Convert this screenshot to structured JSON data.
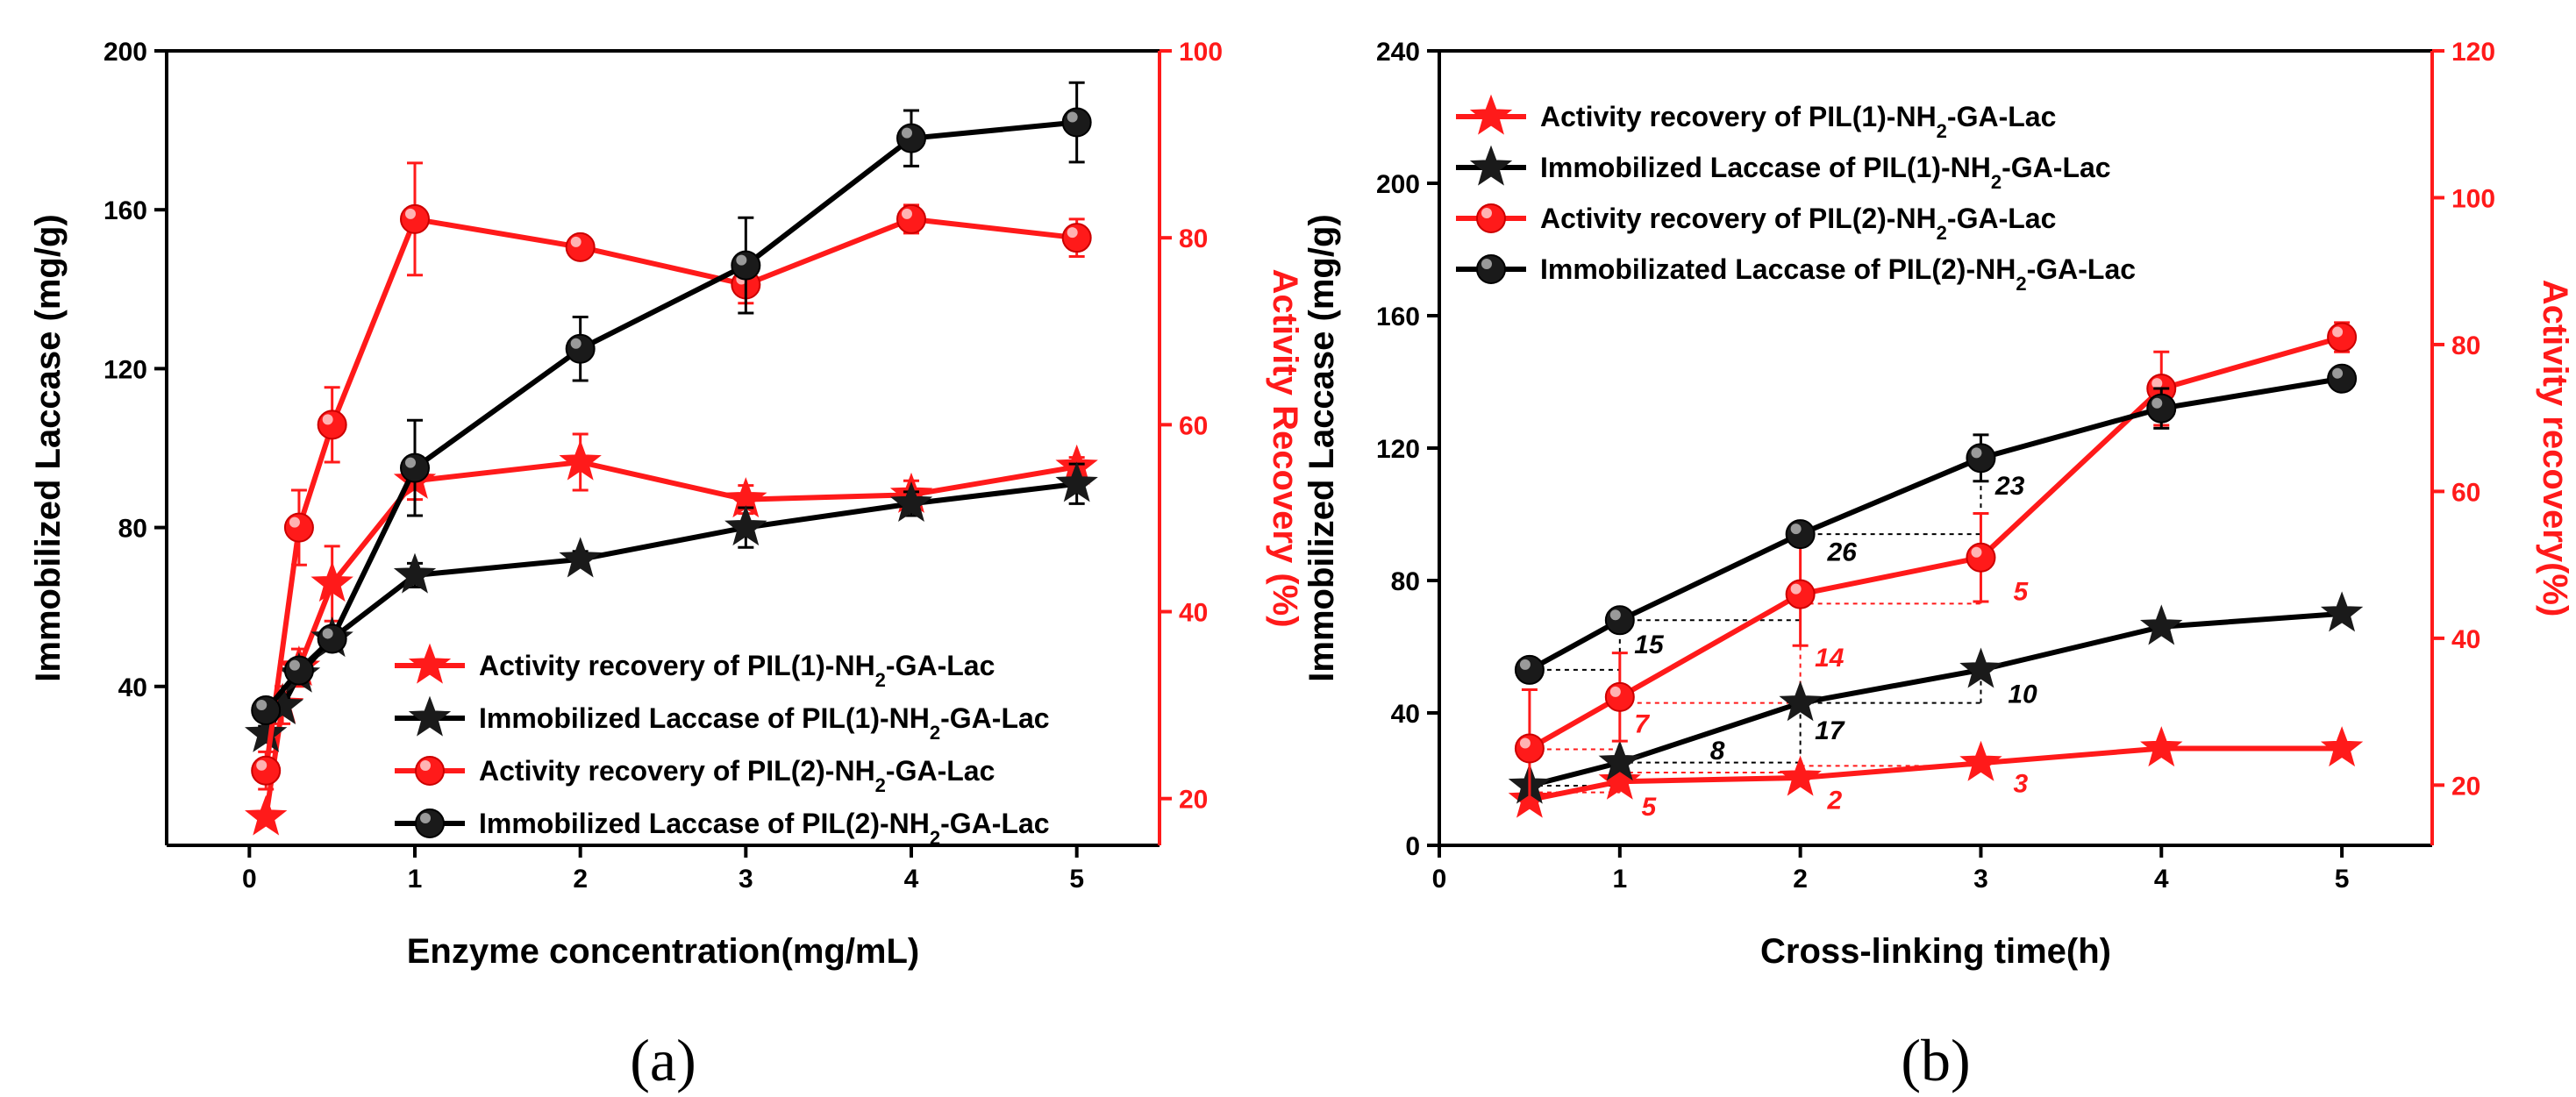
{
  "colors": {
    "black": "#000000",
    "red": "#ff1a1a",
    "dark_marker": "#1a1a1a"
  },
  "chart_data": [
    {
      "id": "a",
      "type": "line",
      "panel_label": "(a)",
      "xlabel": "Enzyme concentration(mg/mL)",
      "ylabel_left": "Immobilized Laccase (mg/g)",
      "ylabel_right": "Activity Recovery (%)",
      "xlim": [
        -0.5,
        5.5
      ],
      "ylim_left": [
        0,
        200
      ],
      "ylim_right": [
        15,
        100
      ],
      "xticks": [
        "0",
        "1",
        "2",
        "3",
        "4",
        "5"
      ],
      "yticks_left": [
        "40",
        "80",
        "120",
        "160",
        "200"
      ],
      "yticks_right": [
        "20",
        "40",
        "60",
        "80",
        "100"
      ],
      "legend": [
        "Activity recovery of PIL(1)-NH₂-GA-Lac",
        "Immobilized Laccase of PIL(1)-NH₂-GA-Lac",
        "Activity recovery of PIL(2)-NH₂-GA-Lac",
        "Immobilized Laccase of PIL(2)-NH₂-GA-Lac"
      ],
      "series": [
        {
          "name": "Activity recovery of PIL(1)-NH₂-GA-Lac",
          "axis": "right",
          "marker": "star",
          "color": "#ff1a1a",
          "x": [
            0.1,
            0.2,
            0.3,
            0.5,
            1,
            2,
            3,
            4,
            5
          ],
          "y": [
            18,
            30,
            34,
            43,
            54,
            56,
            52,
            52.5,
            55.5
          ],
          "err": [
            0,
            2,
            2,
            4,
            2,
            3,
            1.5,
            1.5,
            1
          ]
        },
        {
          "name": "Immobilized Laccase of PIL(1)-NH₂-GA-Lac",
          "axis": "left",
          "marker": "star",
          "color": "#1a1a1a",
          "x": [
            0.1,
            0.2,
            0.3,
            0.5,
            1,
            2,
            3,
            4,
            5
          ],
          "y": [
            28,
            35,
            43,
            52,
            68,
            72,
            80,
            86,
            91
          ],
          "err": [
            2,
            2,
            2,
            2,
            3,
            2,
            5,
            3,
            5
          ]
        },
        {
          "name": "Activity recovery of PIL(2)-NH₂-GA-Lac",
          "axis": "right",
          "marker": "circle",
          "color": "#ff1a1a",
          "x": [
            0.1,
            0.3,
            0.5,
            1,
            2,
            3,
            4,
            5
          ],
          "y": [
            23,
            49,
            60,
            82,
            79,
            75,
            82,
            80
          ],
          "err": [
            2,
            4,
            4,
            6,
            1,
            2,
            1.5,
            2
          ]
        },
        {
          "name": "Immobilized Laccase of PIL(2)-NH₂-GA-Lac",
          "axis": "left",
          "marker": "circle",
          "color": "#1a1a1a",
          "x": [
            0.1,
            0.3,
            0.5,
            1,
            2,
            3,
            4,
            5
          ],
          "y": [
            34,
            44,
            52,
            95,
            125,
            146,
            178,
            182
          ],
          "err": [
            2,
            2,
            2,
            12,
            8,
            12,
            7,
            10
          ]
        }
      ],
      "annotations": []
    },
    {
      "id": "b",
      "type": "line",
      "panel_label": "(b)",
      "xlabel": "Cross-linking time(h)",
      "ylabel_left": "Immobilized Laccase (mg/g)",
      "ylabel_right": "Activity recovery(%)",
      "xlim": [
        0,
        5.5
      ],
      "ylim_left": [
        0,
        240
      ],
      "ylim_right": [
        11.8,
        120
      ],
      "xticks": [
        "0",
        "1",
        "2",
        "3",
        "4",
        "5"
      ],
      "yticks_left": [
        "0",
        "40",
        "80",
        "120",
        "160",
        "200",
        "240"
      ],
      "yticks_right": [
        "20",
        "40",
        "60",
        "80",
        "100",
        "120"
      ],
      "legend": [
        "Activity recovery of PIL(1)-NH₂-GA-Lac",
        "Immobilized Laccase of PIL(1)-NH₂-GA-Lac",
        "Activity recovery of PIL(2)-NH₂-GA-Lac",
        "Immobilizated Laccase of PIL(2)-NH₂-GA-Lac"
      ],
      "series": [
        {
          "name": "Activity recovery of PIL(1)-NH₂-GA-Lac",
          "axis": "right",
          "marker": "star",
          "color": "#ff1a1a",
          "x": [
            0.5,
            1,
            2,
            3,
            4,
            5
          ],
          "y": [
            18,
            20.5,
            21,
            23,
            25,
            25
          ],
          "err": [
            0,
            0,
            0,
            0,
            0,
            0
          ]
        },
        {
          "name": "Immobilized Laccase of PIL(1)-NH₂-GA-Lac",
          "axis": "left",
          "marker": "star",
          "color": "#1a1a1a",
          "x": [
            0.5,
            1,
            2,
            3,
            4,
            5
          ],
          "y": [
            18,
            25,
            43,
            53,
            66,
            70
          ],
          "err": [
            0,
            0,
            0,
            0,
            0,
            0
          ]
        },
        {
          "name": "Activity recovery of PIL(2)-NH₂-GA-Lac",
          "axis": "right",
          "marker": "circle",
          "color": "#ff1a1a",
          "x": [
            0.5,
            1,
            2,
            3,
            4,
            5
          ],
          "y": [
            25,
            32,
            46,
            51,
            74,
            81
          ],
          "err": [
            8,
            6,
            7,
            6,
            5,
            2
          ]
        },
        {
          "name": "Immobilizated Laccase of PIL(2)-NH₂-GA-Lac",
          "axis": "left",
          "marker": "circle",
          "color": "#1a1a1a",
          "x": [
            0.5,
            1,
            2,
            3,
            4,
            5
          ],
          "y": [
            53,
            68,
            94,
            117,
            132,
            141
          ],
          "err": [
            0,
            0,
            0,
            7,
            6,
            0
          ]
        }
      ],
      "annotations": [
        {
          "text": "15",
          "color": "#000000",
          "x": 1.08,
          "y_left": 58
        },
        {
          "text": "26",
          "color": "#000000",
          "x": 2.15,
          "y_left": 86
        },
        {
          "text": "23",
          "color": "#000000",
          "x": 3.08,
          "y_left": 106
        },
        {
          "text": "8",
          "color": "#000000",
          "x": 1.5,
          "y_left": 26
        },
        {
          "text": "17",
          "color": "#000000",
          "x": 2.08,
          "y_left": 32
        },
        {
          "text": "10",
          "color": "#000000",
          "x": 3.15,
          "y_left": 43
        },
        {
          "text": "5",
          "color": "#ff1a1a",
          "x": 1.12,
          "y_left": 9
        },
        {
          "text": "2",
          "color": "#ff1a1a",
          "x": 2.15,
          "y_left": 11
        },
        {
          "text": "3",
          "color": "#ff1a1a",
          "x": 3.18,
          "y_left": 16
        },
        {
          "text": "7",
          "color": "#ff1a1a",
          "x": 1.08,
          "y_left": 34
        },
        {
          "text": "14",
          "color": "#ff1a1a",
          "x": 2.08,
          "y_left": 54
        },
        {
          "text": "5",
          "color": "#ff1a1a",
          "x": 3.18,
          "y_left": 74
        }
      ],
      "guides": [
        {
          "x1": 0.5,
          "x2": 1,
          "y_left": 53,
          "color": "#000000"
        },
        {
          "x1": 1,
          "x2": 2,
          "y_left": 68,
          "color": "#000000"
        },
        {
          "x1": 2,
          "x2": 3,
          "y_left": 94,
          "color": "#000000"
        },
        {
          "x1": 0.5,
          "x2": 1,
          "y_left": 18,
          "color": "#000000"
        },
        {
          "x1": 1,
          "x2": 2,
          "y_left": 25,
          "color": "#000000"
        },
        {
          "x1": 2,
          "x2": 3,
          "y_left": 43,
          "color": "#000000"
        },
        {
          "x1": 0.5,
          "x2": 1,
          "y_left": 16,
          "color": "#ff1a1a"
        },
        {
          "x1": 1,
          "x2": 2,
          "y_left": 22,
          "color": "#ff1a1a"
        },
        {
          "x1": 2,
          "x2": 3,
          "y_left": 24,
          "color": "#ff1a1a"
        },
        {
          "x1": 0.5,
          "x2": 1,
          "y_left": 29,
          "color": "#ff1a1a"
        },
        {
          "x1": 1,
          "x2": 2,
          "y_left": 43,
          "color": "#ff1a1a"
        },
        {
          "x1": 2,
          "x2": 3,
          "y_left": 73,
          "color": "#ff1a1a"
        }
      ],
      "vguides": [
        {
          "x": 1,
          "y1_left": 53,
          "y2_left": 68,
          "color": "#000000"
        },
        {
          "x": 2,
          "y1_left": 68,
          "y2_left": 94,
          "color": "#000000"
        },
        {
          "x": 3,
          "y1_left": 94,
          "y2_left": 117,
          "color": "#000000"
        },
        {
          "x": 1,
          "y1_left": 18,
          "y2_left": 25,
          "color": "#000000"
        },
        {
          "x": 2,
          "y1_left": 25,
          "y2_left": 43,
          "color": "#000000"
        },
        {
          "x": 3,
          "y1_left": 43,
          "y2_left": 53,
          "color": "#000000"
        },
        {
          "x": 1,
          "y1_left": 16,
          "y2_left": 22,
          "color": "#ff1a1a"
        },
        {
          "x": 2,
          "y1_left": 22,
          "y2_left": 24,
          "color": "#ff1a1a"
        },
        {
          "x": 3,
          "y1_left": 24,
          "y2_left": 28,
          "color": "#ff1a1a"
        },
        {
          "x": 1,
          "y1_left": 29,
          "y2_left": 43,
          "color": "#ff1a1a"
        },
        {
          "x": 2,
          "y1_left": 43,
          "y2_left": 73,
          "color": "#ff1a1a"
        },
        {
          "x": 3,
          "y1_left": 73,
          "y2_left": 88,
          "color": "#ff1a1a"
        }
      ]
    }
  ]
}
